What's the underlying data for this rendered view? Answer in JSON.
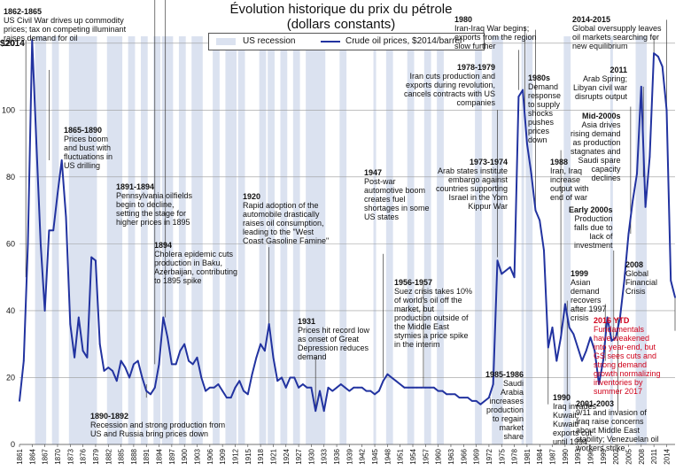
{
  "chart_data": {
    "type": "line",
    "title": "Évolution historique du prix du pétrole",
    "subtitle": "(dollars constants)",
    "ylabel": "$2014",
    "ylim": [
      0,
      130
    ],
    "yticks": [
      0,
      20,
      40,
      60,
      80,
      100,
      120
    ],
    "xlim": [
      1861,
      2016
    ],
    "xticks": [
      1861,
      1864,
      1867,
      1870,
      1873,
      1876,
      1879,
      1882,
      1885,
      1888,
      1891,
      1894,
      1897,
      1900,
      1903,
      1906,
      1909,
      1912,
      1915,
      1918,
      1921,
      1924,
      1927,
      1930,
      1933,
      1936,
      1939,
      1942,
      1945,
      1948,
      1951,
      1954,
      1957,
      1960,
      1963,
      1966,
      1969,
      1972,
      1975,
      1978,
      1981,
      1984,
      1987,
      1990,
      1993,
      1996,
      1999,
      2002,
      2005,
      2008,
      2011,
      2014
    ],
    "legend": [
      {
        "name": "US recession",
        "color": "#dbe2f0"
      },
      {
        "name": "Crude oil prices, $2014/barrel",
        "color": "#2233a0"
      }
    ],
    "series": [
      {
        "name": "Crude oil prices, $2014/barrel",
        "x": [
          1861,
          1862,
          1863,
          1864,
          1865,
          1866,
          1867,
          1868,
          1869,
          1870,
          1871,
          1872,
          1873,
          1874,
          1875,
          1876,
          1877,
          1878,
          1879,
          1880,
          1881,
          1882,
          1883,
          1884,
          1885,
          1886,
          1887,
          1888,
          1889,
          1890,
          1891,
          1892,
          1893,
          1894,
          1895,
          1896,
          1897,
          1898,
          1899,
          1900,
          1901,
          1902,
          1903,
          1904,
          1905,
          1906,
          1907,
          1908,
          1909,
          1910,
          1911,
          1912,
          1913,
          1914,
          1915,
          1916,
          1917,
          1918,
          1919,
          1920,
          1921,
          1922,
          1923,
          1924,
          1925,
          1926,
          1927,
          1928,
          1929,
          1930,
          1931,
          1932,
          1933,
          1934,
          1935,
          1936,
          1937,
          1938,
          1939,
          1940,
          1941,
          1942,
          1943,
          1944,
          1945,
          1946,
          1947,
          1948,
          1949,
          1950,
          1951,
          1952,
          1953,
          1954,
          1955,
          1956,
          1957,
          1958,
          1959,
          1960,
          1961,
          1962,
          1963,
          1964,
          1965,
          1966,
          1967,
          1968,
          1969,
          1970,
          1971,
          1972,
          1973,
          1974,
          1975,
          1976,
          1977,
          1978,
          1979,
          1980,
          1981,
          1982,
          1983,
          1984,
          1985,
          1986,
          1987,
          1988,
          1989,
          1990,
          1991,
          1992,
          1993,
          1994,
          1995,
          1996,
          1997,
          1998,
          1999,
          2000,
          2001,
          2002,
          2003,
          2004,
          2005,
          2006,
          2007,
          2008,
          2009,
          2010,
          2011,
          2012,
          2013,
          2014,
          2015,
          2016
        ],
        "values": [
          13,
          25,
          60,
          121,
          90,
          60,
          40,
          64,
          64,
          75,
          85,
          68,
          36,
          26,
          38,
          28,
          26,
          56,
          55,
          30,
          22,
          23,
          22,
          19,
          25,
          23,
          20,
          24,
          25,
          20,
          16,
          15,
          17,
          24,
          38,
          32,
          24,
          24,
          28,
          30,
          25,
          24,
          26,
          20,
          16,
          17,
          17,
          18,
          16,
          14,
          14,
          17,
          19,
          16,
          15,
          21,
          26,
          30,
          28,
          36,
          26,
          19,
          20,
          17,
          20,
          20,
          17,
          18,
          17,
          17,
          10,
          16,
          10,
          17,
          16,
          17,
          18,
          17,
          16,
          17,
          17,
          17,
          16,
          16,
          15,
          16,
          19,
          21,
          20,
          19,
          18,
          17,
          17,
          17,
          17,
          17,
          17,
          17,
          17,
          16,
          16,
          15,
          15,
          15,
          14,
          14,
          14,
          13,
          13,
          12,
          13,
          14,
          18,
          55,
          51,
          52,
          53,
          50,
          104,
          106,
          90,
          81,
          70,
          67,
          58,
          29,
          35,
          25,
          32,
          42,
          35,
          33,
          29,
          25,
          28,
          32,
          28,
          18,
          25,
          38,
          31,
          32,
          38,
          49,
          63,
          73,
          81,
          107,
          71,
          86,
          117,
          116,
          113,
          100,
          49,
          44
        ]
      }
    ],
    "recessions": [
      [
        1865,
        1867
      ],
      [
        1869,
        1870
      ],
      [
        1873,
        1879
      ],
      [
        1882,
        1885
      ],
      [
        1887,
        1888
      ],
      [
        1890,
        1891
      ],
      [
        1893,
        1894
      ],
      [
        1895,
        1897
      ],
      [
        1899,
        1900
      ],
      [
        1902,
        1904
      ],
      [
        1907,
        1908
      ],
      [
        1910,
        1912
      ],
      [
        1913,
        1914
      ],
      [
        1918,
        1919
      ],
      [
        1920,
        1921
      ],
      [
        1923,
        1924
      ],
      [
        1926,
        1927
      ],
      [
        1929,
        1933
      ],
      [
        1937,
        1938
      ],
      [
        1945,
        1945
      ],
      [
        1948,
        1949
      ],
      [
        1953,
        1954
      ],
      [
        1957,
        1958
      ],
      [
        1960,
        1961
      ],
      [
        1969,
        1970
      ],
      [
        1973,
        1975
      ],
      [
        1980,
        1980
      ],
      [
        1981,
        1982
      ],
      [
        1990,
        1991
      ],
      [
        2001,
        2001
      ],
      [
        2007,
        2009
      ]
    ]
  },
  "annotations": [
    {
      "id": "a1862",
      "head": "1862-1865",
      "body": "US Civil War drives up commodity\nprices; tax on competing illuminant\nraises demand for oil"
    },
    {
      "id": "a1865",
      "head": "1865-1890",
      "body": "Prices boom\nand bust with\nfluctuations in\nUS drilling"
    },
    {
      "id": "a1891",
      "head": "1891-1894",
      "body": "Pennsylvania oilfields\nbegin to decline,\nsetting the stage for\nhigher prices in 1895"
    },
    {
      "id": "a1894",
      "head": "1894",
      "body": "Cholera epidemic cuts\nproduction in Baku,\nAzerbaijan, contributing\nto 1895 spike"
    },
    {
      "id": "a1890b",
      "head": "1890-1892",
      "body": "Recession and strong production from\nUS and Russia bring prices down"
    },
    {
      "id": "a1920",
      "head": "1920",
      "body": "Rapid adoption of the\nautomobile drastically\nraises oil consumption,\nleading to the \"West\nCoast Gasoline Famine\""
    },
    {
      "id": "a1931",
      "head": "1931",
      "body": "Prices hit record low\nas onset of Great\nDepression reduces\ndemand"
    },
    {
      "id": "a1947",
      "head": "1947",
      "body": "Post-war\nautomotive boom\ncreates fuel\nshortages in some\nUS states"
    },
    {
      "id": "a1956",
      "head": "1956-1957",
      "body": "Suez crisis takes 10%\nof world's oil off the\nmarket, but\nproduction outside of\nthe Middle East\nstymies a price spike\nin the interim"
    },
    {
      "id": "a1973",
      "head": "1973-1974",
      "body": "Arab states institute\nembargo against\ncountries supporting\nIsrael in the Yom\nKippur War"
    },
    {
      "id": "a1978",
      "head": "1978-1979",
      "body": "Iran cuts production and\nexports during revolution,\ncancels contracts with US\ncompanies"
    },
    {
      "id": "a1980",
      "head": "1980",
      "body": "Iran-Iraq War begins;\nexports from the region\nslow further"
    },
    {
      "id": "a1980s",
      "head": "1980s",
      "body": "Demand\nresponse\nto supply\nshocks\npushes\nprices\ndown"
    },
    {
      "id": "a1985",
      "head": "1985-1986",
      "body": "Saudi\nArabia\nincreases\nproduction\nto regain\nmarket\nshare"
    },
    {
      "id": "a1988",
      "head": "1988",
      "body": "Iran, Iraq\nincrease\noutput with\nend of war"
    },
    {
      "id": "a1990",
      "head": "1990",
      "body": "Iraq invades\nKuwait;\nKuwaiti\nexports cut\nuntil 1994"
    },
    {
      "id": "a1999",
      "head": "1999",
      "body": "Asian\ndemand\nrecovers\nafter 1997\ncrisis"
    },
    {
      "id": "a2000s",
      "head": "Early 2000s",
      "body": "Production\nfalls due to\nlack of\ninvestment"
    },
    {
      "id": "a2001",
      "head": "2001-2003",
      "body": "9/11 and invasion of\nIraq raise concerns\nabout Middle East\nstability; Venezuelan oil\nworkers strike"
    },
    {
      "id": "a2005",
      "head": "Mid-2000s",
      "body": "Asia drives\nrising demand\nas production\nstagnates and\nSaudi spare\ncapacity\ndeclines"
    },
    {
      "id": "a2008",
      "head": "2008",
      "body": "Global\nFinancial\nCrisis"
    },
    {
      "id": "a2011",
      "head": "2011",
      "body": "Arab Spring;\nLibyan civil war\ndisrupts output"
    },
    {
      "id": "a2014",
      "head": "2014-2015",
      "body": "Global oversupply leaves\noil markets searching for\nnew equilibrium"
    },
    {
      "id": "a2016",
      "head": "2016 YTD",
      "body": "Fundamentals\nhave weakened\ninto year-end, but\nGS sees cuts and\nstrong demand\ngrowth normalizing\ninventories by\nsummer 2017"
    }
  ],
  "colors": {
    "line": "#2233a0",
    "recession": "#dbe2f0",
    "grid": "#9a9a9a",
    "red": "#d0021b"
  }
}
